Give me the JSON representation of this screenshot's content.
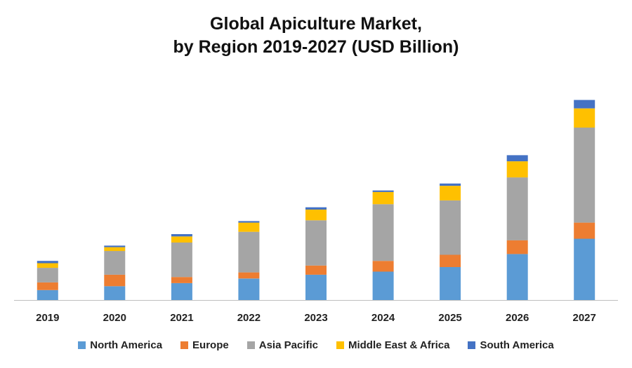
{
  "chart_data": {
    "type": "bar",
    "stacked": true,
    "title": "Global Apiculture Market,",
    "subtitle": "by Region 2019-2027 (USD Billion)",
    "categories": [
      "2019",
      "2020",
      "2021",
      "2022",
      "2023",
      "2024",
      "2025",
      "2026",
      "2027"
    ],
    "series": [
      {
        "name": "North America",
        "color": "#5B9BD5",
        "values": [
          1.3,
          1.8,
          2.2,
          2.8,
          3.3,
          3.7,
          4.3,
          6.0,
          8.0
        ]
      },
      {
        "name": "Europe",
        "color": "#ED7D31",
        "values": [
          1.0,
          1.5,
          0.8,
          0.8,
          1.2,
          1.4,
          1.6,
          1.8,
          2.1
        ]
      },
      {
        "name": "Asia Pacific",
        "color": "#A5A5A5",
        "values": [
          1.9,
          3.1,
          4.5,
          5.3,
          5.9,
          7.4,
          7.1,
          8.2,
          12.4
        ]
      },
      {
        "name": "Middle East & Africa",
        "color": "#FFC000",
        "values": [
          0.6,
          0.5,
          0.8,
          1.2,
          1.4,
          1.6,
          1.9,
          2.1,
          2.5
        ]
      },
      {
        "name": "South America",
        "color": "#4472C4",
        "values": [
          0.3,
          0.2,
          0.3,
          0.2,
          0.3,
          0.2,
          0.3,
          0.8,
          1.1
        ]
      }
    ],
    "ylim": [
      0,
      30
    ],
    "grid": false,
    "legend_position": "bottom"
  }
}
